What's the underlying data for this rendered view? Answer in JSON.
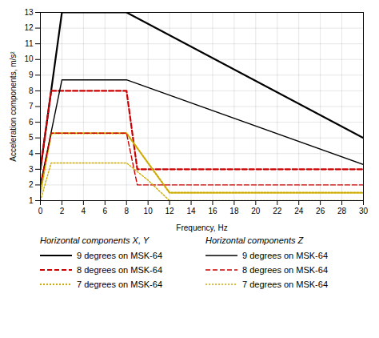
{
  "chart_data": {
    "type": "line",
    "xlabel": "Frequency, Hz",
    "ylabel": "Acceleration components, m/s²",
    "xlim": [
      0,
      30
    ],
    "ylim": [
      1,
      13
    ],
    "xticks": [
      0,
      2,
      4,
      6,
      8,
      10,
      12,
      14,
      16,
      18,
      20,
      22,
      24,
      26,
      28,
      30
    ],
    "yticks": [
      1,
      2,
      3,
      4,
      5,
      6,
      7,
      8,
      9,
      10,
      11,
      12,
      13
    ],
    "grid": true,
    "series_groups": [
      {
        "title": "Horizontal components X, Y",
        "series": [
          {
            "name": "9 degrees on MSK-64",
            "color": "#000000",
            "line_style": "solid",
            "x": [
              0,
              2,
              8,
              30
            ],
            "values": [
              3,
              13,
              13,
              5
            ]
          },
          {
            "name": "8 degrees on MSK-64",
            "color": "#cc0000",
            "line_style": "dashed",
            "x": [
              0,
              1,
              8,
              9,
              30
            ],
            "values": [
              3,
              8,
              8,
              3,
              3
            ]
          },
          {
            "name": "7 degrees on MSK-64",
            "color": "#ccaa00",
            "line_style": "dotted",
            "x": [
              0,
              1,
              8,
              10,
              12,
              30
            ],
            "values": [
              1.5,
              5.3,
              5.3,
              3.4,
              1.5,
              1.5
            ]
          }
        ]
      },
      {
        "title": "Horizontal components Z",
        "series": [
          {
            "name": "9 degrees on MSK-64",
            "color": "#000000",
            "line_style": "solid",
            "x": [
              0,
              2,
              8,
              30
            ],
            "values": [
              2,
              8.7,
              8.7,
              3.3
            ]
          },
          {
            "name": "8 degrees on MSK-64",
            "color": "#cc0000",
            "line_style": "dashed",
            "x": [
              0,
              1,
              8,
              9,
              30
            ],
            "values": [
              2,
              5.3,
              5.3,
              2,
              2
            ]
          },
          {
            "name": "7 degrees on MSK-64",
            "color": "#ccaa00",
            "line_style": "dotted",
            "x": [
              0,
              1,
              8,
              10,
              12,
              30
            ],
            "values": [
              1,
              3.4,
              3.4,
              2.3,
              1.0,
              1.0
            ]
          }
        ]
      }
    ]
  }
}
